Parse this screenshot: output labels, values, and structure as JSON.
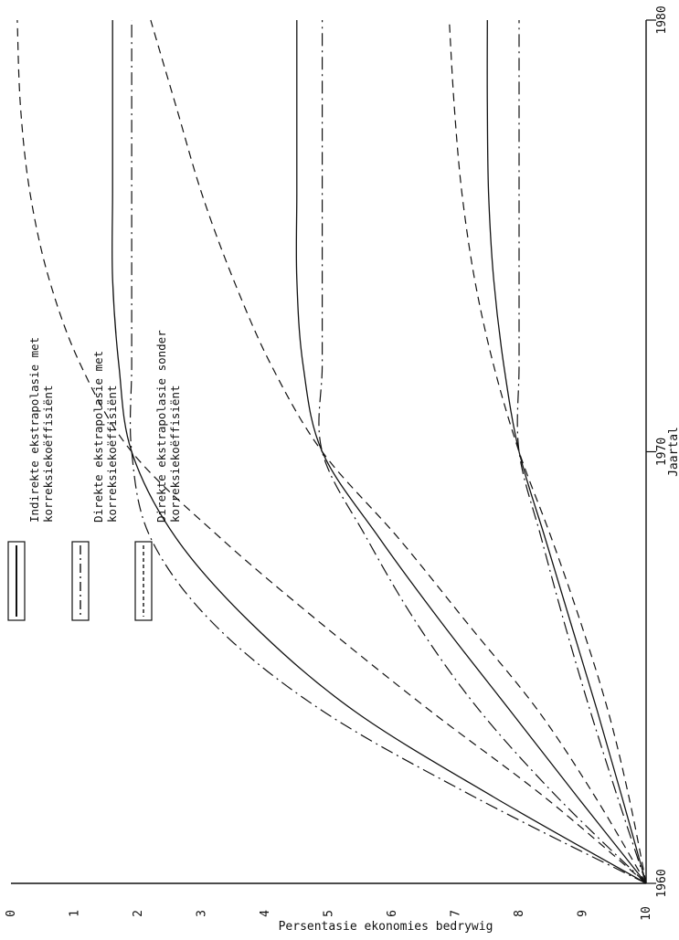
{
  "chart_data": {
    "type": "line",
    "xlabel": "Jaartal",
    "ylabel": "Persentasie ekonomies bedrywig",
    "x_ticks": [
      "1960",
      "1970",
      "1980"
    ],
    "y_ticks": [
      "0",
      "1",
      "2",
      "3",
      "4",
      "5",
      "6",
      "7",
      "8",
      "9",
      "10"
    ],
    "xlim": [
      1960,
      1980
    ],
    "ylim": [
      0,
      10
    ],
    "legend": [
      {
        "label_line1": "Indirekte ekstrapolasie met",
        "label_line2": "korreksiekoëffisiënt",
        "style": "solid"
      },
      {
        "label_line1": "Direkte ekstrapolasie met",
        "label_line2": "korreksiekoëffisiënt",
        "style": "dashdot"
      },
      {
        "label_line1": "Direkte ekstrapolasie sonder",
        "label_line2": "korreksiekoëffisiënt",
        "style": "dashed"
      }
    ],
    "series": [
      {
        "style": "solid",
        "group": "high",
        "x": [
          1960,
          1962,
          1964,
          1966,
          1968,
          1970,
          1972,
          1974,
          1976,
          1978,
          1980
        ],
        "y": [
          10,
          9.62,
          9.23,
          8.82,
          8.41,
          8.0,
          7.76,
          7.6,
          7.52,
          7.5,
          7.5
        ]
      },
      {
        "style": "dashdot",
        "group": "high",
        "x": [
          1960,
          1962,
          1964,
          1966,
          1968,
          1970,
          1972,
          1974,
          1976,
          1978,
          1980
        ],
        "y": [
          10,
          9.55,
          9.12,
          8.72,
          8.35,
          8.0,
          8.0,
          8.0,
          8.0,
          8.0,
          8.0
        ]
      },
      {
        "style": "dashed",
        "group": "high",
        "x": [
          1960,
          1962,
          1964,
          1966,
          1968,
          1970,
          1972,
          1974,
          1976,
          1978,
          1980
        ],
        "y": [
          10,
          9.73,
          9.4,
          8.98,
          8.51,
          8.0,
          7.6,
          7.3,
          7.1,
          6.98,
          6.9
        ]
      },
      {
        "style": "solid",
        "group": "mid",
        "x": [
          1960,
          1962,
          1964,
          1966,
          1968,
          1970,
          1972,
          1974,
          1976,
          1978,
          1980
        ],
        "y": [
          10,
          8.92,
          7.86,
          6.8,
          5.8,
          4.9,
          4.6,
          4.5,
          4.5,
          4.5,
          4.5
        ]
      },
      {
        "style": "dashdot",
        "group": "mid",
        "x": [
          1960,
          1962,
          1964,
          1966,
          1968,
          1970,
          1972,
          1974,
          1976,
          1978,
          1980
        ],
        "y": [
          10,
          8.6,
          7.38,
          6.4,
          5.6,
          4.9,
          4.9,
          4.9,
          4.9,
          4.9,
          4.9
        ]
      },
      {
        "style": "dashed",
        "group": "mid",
        "x": [
          1960,
          1962,
          1964,
          1966,
          1968,
          1970,
          1972,
          1974,
          1976,
          1978,
          1980
        ],
        "y": [
          10,
          9.2,
          8.3,
          7.2,
          6.1,
          4.9,
          4.1,
          3.5,
          3.0,
          2.6,
          2.2
        ]
      },
      {
        "style": "solid",
        "group": "low",
        "x": [
          1960,
          1962,
          1964,
          1966,
          1968,
          1970,
          1972,
          1974,
          1976,
          1978,
          1980
        ],
        "y": [
          10,
          7.6,
          5.4,
          3.8,
          2.6,
          1.9,
          1.7,
          1.6,
          1.6,
          1.6,
          1.6
        ]
      },
      {
        "style": "dashdot",
        "group": "low",
        "x": [
          1960,
          1962,
          1964,
          1966,
          1968,
          1970,
          1972,
          1974,
          1976,
          1978,
          1980
        ],
        "y": [
          10,
          7.3,
          4.9,
          3.2,
          2.2,
          1.9,
          1.9,
          1.9,
          1.9,
          1.9,
          1.9
        ]
      },
      {
        "style": "dashed",
        "group": "low",
        "x": [
          1960,
          1962,
          1964,
          1966,
          1968,
          1970,
          1972,
          1974,
          1976,
          1978,
          1980
        ],
        "y": [
          10,
          8.4,
          6.6,
          4.9,
          3.3,
          1.9,
          1.1,
          0.6,
          0.3,
          0.15,
          0.1
        ]
      }
    ]
  }
}
